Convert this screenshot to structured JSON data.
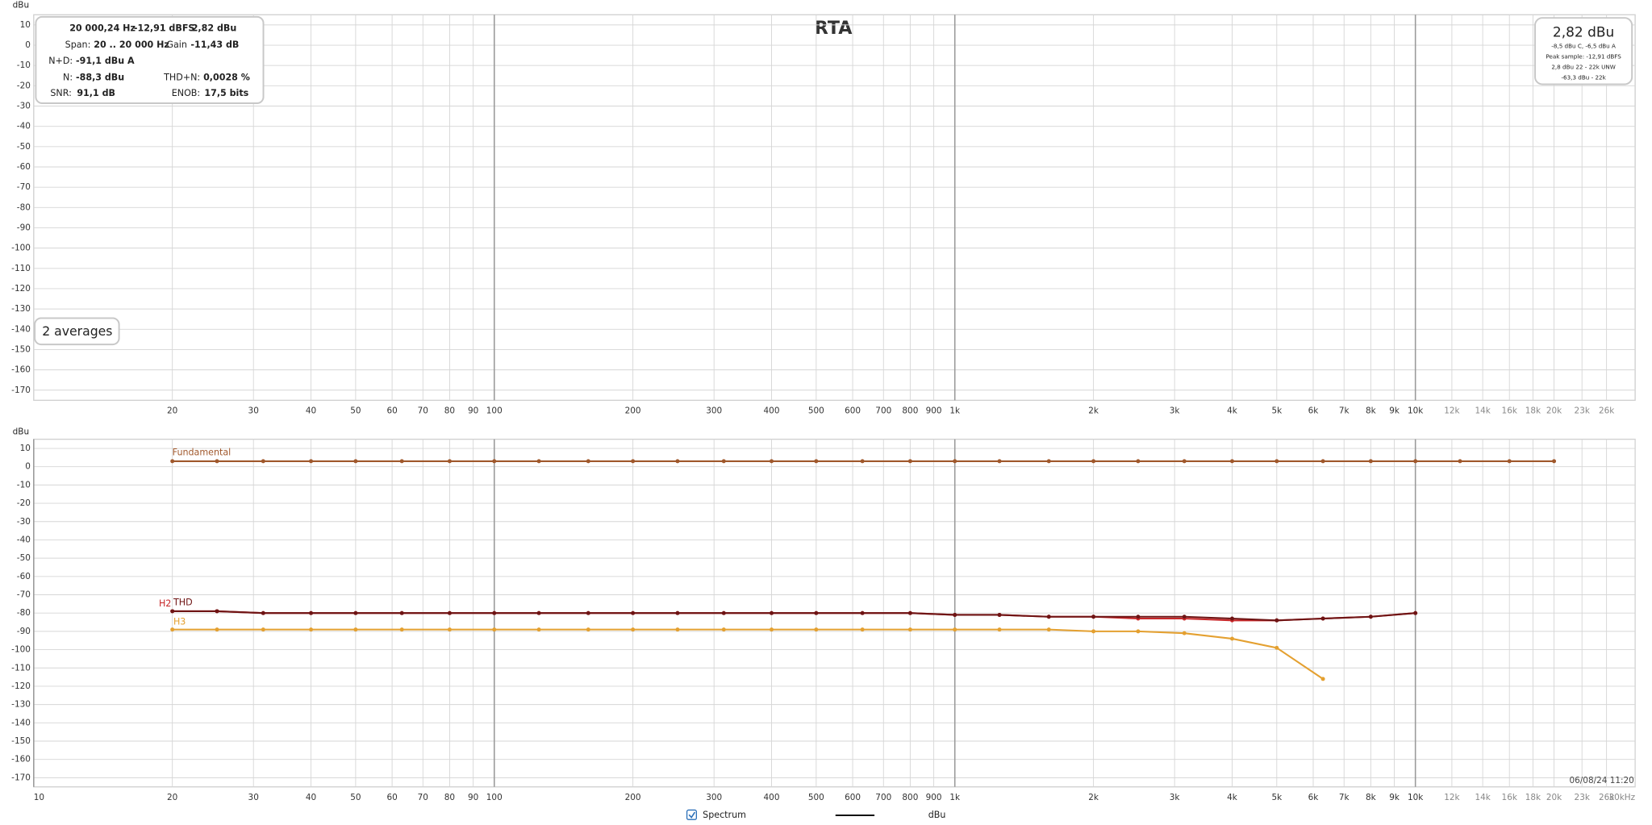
{
  "chart_data": [
    {
      "type": "line",
      "title": "RTA",
      "y_label": "dBu",
      "log_x": true,
      "grid": true,
      "xlim": [
        10,
        30000
      ],
      "ylim": [
        -175,
        15
      ],
      "xticks": [
        20,
        30,
        40,
        50,
        60,
        70,
        80,
        90,
        100,
        200,
        300,
        400,
        500,
        600,
        700,
        800,
        900,
        {
          "value": 1000,
          "label": "1k"
        },
        {
          "value": 2000,
          "label": "2k"
        },
        {
          "value": 3000,
          "label": "3k"
        },
        {
          "value": 4000,
          "label": "4k"
        },
        {
          "value": 5000,
          "label": "5k"
        },
        {
          "value": 6000,
          "label": "6k"
        },
        {
          "value": 7000,
          "label": "7k"
        },
        {
          "value": 8000,
          "label": "8k"
        },
        {
          "value": 9000,
          "label": "9k"
        },
        {
          "value": 10000,
          "label": "10k"
        },
        {
          "value": 12000,
          "label": "12k"
        },
        {
          "value": 14000,
          "label": "14k"
        },
        {
          "value": 16000,
          "label": "16k"
        },
        {
          "value": 18000,
          "label": "18k"
        },
        {
          "value": 20000,
          "label": "20k"
        },
        {
          "value": 23000,
          "label": "23k"
        },
        {
          "value": 26000,
          "label": "26k"
        }
      ],
      "yticks": [
        10,
        0,
        -10,
        -20,
        -30,
        -40,
        -50,
        -60,
        -70,
        -80,
        -90,
        -100,
        -110,
        -120,
        -130,
        -140,
        -150,
        -160,
        -170
      ]
    },
    {
      "type": "line",
      "y_label": "dBu",
      "log_x": true,
      "grid": true,
      "xlim": [
        10,
        30000
      ],
      "ylim": [
        -175,
        15
      ],
      "xticks": [
        10,
        20,
        30,
        40,
        50,
        60,
        70,
        80,
        90,
        100,
        200,
        300,
        400,
        500,
        600,
        700,
        800,
        900,
        {
          "value": 1000,
          "label": "1k"
        },
        {
          "value": 2000,
          "label": "2k"
        },
        {
          "value": 3000,
          "label": "3k"
        },
        {
          "value": 4000,
          "label": "4k"
        },
        {
          "value": 5000,
          "label": "5k"
        },
        {
          "value": 6000,
          "label": "6k"
        },
        {
          "value": 7000,
          "label": "7k"
        },
        {
          "value": 8000,
          "label": "8k"
        },
        {
          "value": 9000,
          "label": "9k"
        },
        {
          "value": 10000,
          "label": "10k"
        },
        {
          "value": 12000,
          "label": "12k"
        },
        {
          "value": 14000,
          "label": "14k"
        },
        {
          "value": 16000,
          "label": "16k"
        },
        {
          "value": 18000,
          "label": "18k"
        },
        {
          "value": 20000,
          "label": "20k"
        },
        {
          "value": 23000,
          "label": "23k"
        },
        {
          "value": 26000,
          "label": "26k"
        },
        {
          "value": 30000,
          "label": "30kHz"
        }
      ],
      "yticks": [
        10,
        0,
        -10,
        -20,
        -30,
        -40,
        -50,
        -60,
        -70,
        -80,
        -90,
        -100,
        -110,
        -120,
        -130,
        -140,
        -150,
        -160,
        -170
      ],
      "x": [
        20,
        25,
        31.5,
        40,
        50,
        63,
        80,
        100,
        125,
        160,
        200,
        250,
        315,
        400,
        500,
        630,
        800,
        1000,
        1250,
        1600,
        2000,
        2500,
        3150,
        4000,
        5000,
        6300,
        8000,
        10000,
        12500,
        16000,
        20000
      ],
      "series": [
        {
          "name": "Fundamental",
          "color": "#a0582c",
          "values": [
            3,
            3,
            3,
            3,
            3,
            3,
            3,
            3,
            3,
            3,
            3,
            3,
            3,
            3,
            3,
            3,
            3,
            3,
            3,
            3,
            3,
            3,
            3,
            3,
            3,
            3,
            3,
            3,
            3,
            3,
            3
          ]
        },
        {
          "name": "H3",
          "color": "#e4a030",
          "values": [
            -89,
            -89,
            -89,
            -89,
            -89,
            -89,
            -89,
            -89,
            -89,
            -89,
            -89,
            -89,
            -89,
            -89,
            -89,
            -89,
            -89,
            -89,
            -89,
            -89,
            -90,
            -90,
            -91,
            -94,
            -99,
            -116,
            null,
            null,
            null,
            null,
            null
          ]
        },
        {
          "name": "H2",
          "color": "#c8282a",
          "values": [
            -79,
            -79,
            -80,
            -80,
            -80,
            -80,
            -80,
            -80,
            -80,
            -80,
            -80,
            -80,
            -80,
            -80,
            -80,
            -80,
            -80,
            -81,
            -81,
            -82,
            -82,
            -83,
            -83,
            -84,
            -84,
            -83,
            -82,
            -80,
            null,
            null,
            null
          ]
        },
        {
          "name": "THD",
          "color": "#6e1414",
          "values": [
            -79,
            -79,
            -80,
            -80,
            -80,
            -80,
            -80,
            -80,
            -80,
            -80,
            -80,
            -80,
            -80,
            -80,
            -80,
            -80,
            -80,
            -81,
            -81,
            -82,
            -82,
            -82,
            -82,
            -83,
            -84,
            -83,
            -82,
            -80,
            null,
            null,
            null
          ]
        }
      ]
    }
  ],
  "readout": {
    "frequency": "20 000,24 Hz",
    "dbfs": "-12,91 dBFS",
    "dbu": "2,82 dBu",
    "span_label": "Span:",
    "span": "20 .. 20 000 Hz",
    "gain_label": "Gain",
    "gain": "-11,43 dB",
    "nd_label": "N+D:",
    "nd": "-91,1 dBu A",
    "n_label": "N:",
    "n": "-88,3 dBu",
    "thdn_label": "THD+N:",
    "thdn": "0,0028 %",
    "snr_label": "SNR:",
    "snr": "91,1 dB",
    "enob_label": "ENOB:",
    "enob": "17,5 bits"
  },
  "level": {
    "main": "2,82 dBu",
    "weighted": "-8,5 dBu C, -6,5 dBu A",
    "peak": "Peak sample: -12,91 dBFS",
    "unweighted": "2,8 dBu 22 - 22k UNW",
    "band": "-63,3 dBu - 22k"
  },
  "averages": "2 averages",
  "timestamp": "06/08/24 11:20",
  "legend": {
    "label": "Spectrum",
    "unit": "dBu"
  }
}
